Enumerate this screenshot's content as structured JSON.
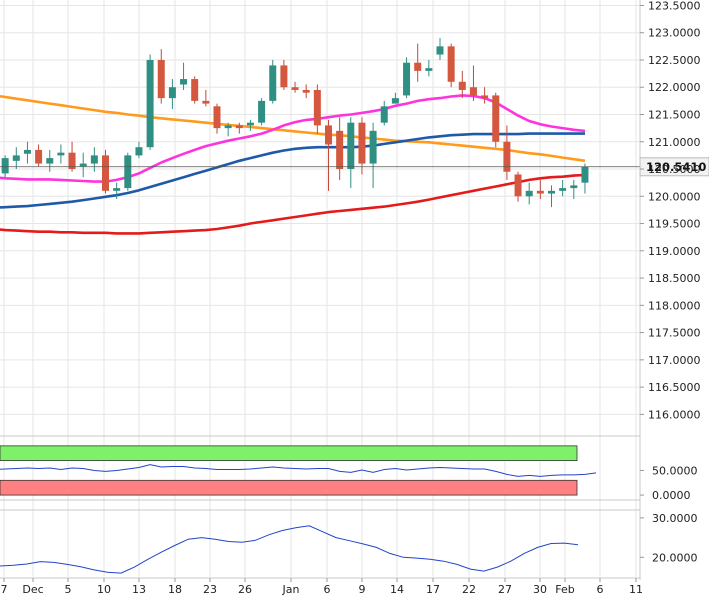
{
  "chart_data": {
    "type": "candlestick",
    "y_ticks": [
      "123.5000",
      "123.0000",
      "122.5000",
      "122.0000",
      "121.5000",
      "121.0000",
      "120.5000",
      "120.0000",
      "119.5000",
      "119.0000",
      "118.5000",
      "118.0000",
      "117.5000",
      "117.0000",
      "116.5000",
      "116.0000"
    ],
    "ylim": [
      115.75,
      123.6
    ],
    "x_labels": [
      "7",
      "Dec",
      "5",
      "10",
      "13",
      "18",
      "23",
      "26",
      "Jan",
      "6",
      "9",
      "14",
      "17",
      "22",
      "27",
      "30",
      "Feb",
      "6",
      "11"
    ],
    "last_price": "120.5410",
    "candles": [
      {
        "x": "21",
        "o": 120.2,
        "h": 120.45,
        "l": 120.15,
        "c": 120.4
      },
      {
        "x": "22",
        "o": 120.42,
        "h": 120.75,
        "l": 120.35,
        "c": 120.7
      },
      {
        "x": "23",
        "o": 120.65,
        "h": 120.9,
        "l": 120.5,
        "c": 120.75
      },
      {
        "x": "26",
        "o": 120.78,
        "h": 121.0,
        "l": 120.6,
        "c": 120.85
      },
      {
        "x": "27",
        "o": 120.85,
        "h": 120.95,
        "l": 120.55,
        "c": 120.6
      },
      {
        "x": "28",
        "o": 120.6,
        "h": 120.85,
        "l": 120.45,
        "c": 120.7
      },
      {
        "x": "Dec 3",
        "o": 120.75,
        "h": 120.95,
        "l": 120.6,
        "c": 120.8
      },
      {
        "x": "Dec 4",
        "o": 120.8,
        "h": 121.0,
        "l": 120.45,
        "c": 120.5
      },
      {
        "x": "Dec 5",
        "o": 120.55,
        "h": 120.8,
        "l": 120.35,
        "c": 120.6
      },
      {
        "x": "Dec 6",
        "o": 120.6,
        "h": 120.9,
        "l": 120.45,
        "c": 120.75
      },
      {
        "x": "Dec 9",
        "o": 120.75,
        "h": 120.85,
        "l": 120.05,
        "c": 120.1
      },
      {
        "x": "Dec 10",
        "o": 120.1,
        "h": 120.25,
        "l": 119.95,
        "c": 120.15
      },
      {
        "x": "Dec 11",
        "o": 120.15,
        "h": 120.8,
        "l": 120.1,
        "c": 120.75
      },
      {
        "x": "Dec 12",
        "o": 120.75,
        "h": 121.0,
        "l": 120.7,
        "c": 120.9
      },
      {
        "x": "Dec 13",
        "o": 120.9,
        "h": 122.6,
        "l": 120.85,
        "c": 122.5
      },
      {
        "x": "Dec 16",
        "o": 122.5,
        "h": 122.7,
        "l": 121.7,
        "c": 121.8
      },
      {
        "x": "Dec 17",
        "o": 121.8,
        "h": 122.15,
        "l": 121.6,
        "c": 122.0
      },
      {
        "x": "Dec 18",
        "o": 122.05,
        "h": 122.45,
        "l": 121.95,
        "c": 122.15
      },
      {
        "x": "Dec 19",
        "o": 122.15,
        "h": 122.2,
        "l": 121.7,
        "c": 121.75
      },
      {
        "x": "Dec 20",
        "o": 121.75,
        "h": 121.95,
        "l": 121.65,
        "c": 121.7
      },
      {
        "x": "Dec 23",
        "o": 121.65,
        "h": 121.7,
        "l": 121.15,
        "c": 121.25
      },
      {
        "x": "Dec 24",
        "o": 121.25,
        "h": 121.35,
        "l": 121.1,
        "c": 121.3
      },
      {
        "x": "Dec 25",
        "o": 121.3,
        "h": 121.35,
        "l": 121.15,
        "c": 121.25
      },
      {
        "x": "Dec 26",
        "o": 121.3,
        "h": 121.4,
        "l": 121.2,
        "c": 121.35
      },
      {
        "x": "Dec 27",
        "o": 121.35,
        "h": 121.8,
        "l": 121.3,
        "c": 121.75
      },
      {
        "x": "Dec 30",
        "o": 121.75,
        "h": 122.5,
        "l": 121.7,
        "c": 122.4
      },
      {
        "x": "Dec 31",
        "o": 122.4,
        "h": 122.5,
        "l": 121.95,
        "c": 122.0
      },
      {
        "x": "Jan 1",
        "o": 122.0,
        "h": 122.1,
        "l": 121.9,
        "c": 121.95
      },
      {
        "x": "Jan 2",
        "o": 121.95,
        "h": 122.05,
        "l": 121.8,
        "c": 121.9
      },
      {
        "x": "Jan 3",
        "o": 121.95,
        "h": 122.05,
        "l": 121.15,
        "c": 121.3
      },
      {
        "x": "Jan 6",
        "o": 121.3,
        "h": 121.4,
        "l": 120.1,
        "c": 120.95
      },
      {
        "x": "Jan 7",
        "o": 121.2,
        "h": 121.45,
        "l": 120.3,
        "c": 120.5
      },
      {
        "x": "Jan 8",
        "o": 120.5,
        "h": 121.45,
        "l": 120.15,
        "c": 121.35
      },
      {
        "x": "Jan 9",
        "o": 121.35,
        "h": 121.45,
        "l": 120.4,
        "c": 120.6
      },
      {
        "x": "Jan 10",
        "o": 120.6,
        "h": 121.35,
        "l": 120.15,
        "c": 121.2
      },
      {
        "x": "Jan 13",
        "o": 121.35,
        "h": 121.75,
        "l": 121.3,
        "c": 121.65
      },
      {
        "x": "Jan 14",
        "o": 121.7,
        "h": 121.9,
        "l": 121.7,
        "c": 121.8
      },
      {
        "x": "Jan 15",
        "o": 121.85,
        "h": 122.55,
        "l": 121.8,
        "c": 122.45
      },
      {
        "x": "Jan 16",
        "o": 122.45,
        "h": 122.8,
        "l": 122.1,
        "c": 122.3
      },
      {
        "x": "Jan 17",
        "o": 122.3,
        "h": 122.5,
        "l": 122.2,
        "c": 122.35
      },
      {
        "x": "Jan 20",
        "o": 122.6,
        "h": 122.9,
        "l": 122.5,
        "c": 122.75
      },
      {
        "x": "Jan 21",
        "o": 122.75,
        "h": 122.8,
        "l": 122.0,
        "c": 122.1
      },
      {
        "x": "Jan 22",
        "o": 122.1,
        "h": 122.3,
        "l": 121.8,
        "c": 121.95
      },
      {
        "x": "Jan 23",
        "o": 122.0,
        "h": 122.4,
        "l": 121.75,
        "c": 121.85
      },
      {
        "x": "Jan 24",
        "o": 121.85,
        "h": 122.0,
        "l": 121.7,
        "c": 121.8
      },
      {
        "x": "Jan 27",
        "o": 121.85,
        "h": 121.9,
        "l": 120.9,
        "c": 121.0
      },
      {
        "x": "Jan 28",
        "o": 121.0,
        "h": 121.3,
        "l": 120.3,
        "c": 120.45
      },
      {
        "x": "Jan 29",
        "o": 120.4,
        "h": 120.45,
        "l": 119.9,
        "c": 120.0
      },
      {
        "x": "Jan 30",
        "o": 120.0,
        "h": 120.25,
        "l": 119.85,
        "c": 120.1
      },
      {
        "x": "Jan 31",
        "o": 120.1,
        "h": 120.3,
        "l": 119.95,
        "c": 120.05
      },
      {
        "x": "Feb 3",
        "o": 120.05,
        "h": 120.2,
        "l": 119.8,
        "c": 120.1
      },
      {
        "x": "Feb 4",
        "o": 120.1,
        "h": 120.3,
        "l": 120.0,
        "c": 120.15
      },
      {
        "x": "Feb 5",
        "o": 120.15,
        "h": 120.3,
        "l": 119.95,
        "c": 120.2
      },
      {
        "x": "Feb 6",
        "o": 120.25,
        "h": 120.6,
        "l": 120.05,
        "c": 120.54
      }
    ],
    "ma_lines": [
      {
        "color": "#ff9a1a",
        "values": [
          121.85,
          121.82,
          121.79,
          121.76,
          121.73,
          121.7,
          121.67,
          121.64,
          121.61,
          121.58,
          121.55,
          121.53,
          121.5,
          121.48,
          121.45,
          121.43,
          121.41,
          121.39,
          121.37,
          121.35,
          121.33,
          121.31,
          121.29,
          121.27,
          121.25,
          121.23,
          121.21,
          121.19,
          121.17,
          121.15,
          121.13,
          121.12,
          121.1,
          121.08,
          121.06,
          121.04,
          121.02,
          121.01,
          121.0,
          120.99,
          120.97,
          120.95,
          120.93,
          120.91,
          120.89,
          120.87,
          120.85,
          120.82,
          120.79,
          120.77,
          120.74,
          120.71,
          120.68,
          120.65
        ]
      },
      {
        "color": "#ff33dd",
        "values": [
          120.35,
          120.33,
          120.32,
          120.31,
          120.31,
          120.31,
          120.3,
          120.29,
          120.28,
          120.27,
          120.27,
          120.3,
          120.35,
          120.42,
          120.52,
          120.62,
          120.7,
          120.78,
          120.85,
          120.92,
          120.97,
          121.02,
          121.06,
          121.1,
          121.15,
          121.22,
          121.3,
          121.36,
          121.4,
          121.42,
          121.45,
          121.48,
          121.5,
          121.53,
          121.56,
          121.6,
          121.66,
          121.7,
          121.75,
          121.78,
          121.8,
          121.83,
          121.85,
          121.84,
          121.8,
          121.72,
          121.6,
          121.48,
          121.38,
          121.32,
          121.28,
          121.25,
          121.22,
          121.2
        ]
      },
      {
        "color": "#1e5aa8",
        "values": [
          119.79,
          119.8,
          119.81,
          119.82,
          119.84,
          119.86,
          119.88,
          119.9,
          119.93,
          119.96,
          119.99,
          120.02,
          120.06,
          120.11,
          120.17,
          120.23,
          120.29,
          120.35,
          120.41,
          120.47,
          120.53,
          120.59,
          120.65,
          120.7,
          120.75,
          120.8,
          120.84,
          120.87,
          120.89,
          120.9,
          120.9,
          120.9,
          120.9,
          120.91,
          120.93,
          120.96,
          120.99,
          121.02,
          121.05,
          121.08,
          121.1,
          121.12,
          121.13,
          121.14,
          121.14,
          121.14,
          121.14,
          121.14,
          121.15,
          121.15,
          121.15,
          121.15,
          121.15,
          121.15
        ]
      },
      {
        "color": "#e31b1b",
        "values": [
          119.4,
          119.38,
          119.37,
          119.36,
          119.35,
          119.35,
          119.34,
          119.34,
          119.33,
          119.33,
          119.33,
          119.32,
          119.32,
          119.32,
          119.33,
          119.34,
          119.35,
          119.36,
          119.37,
          119.38,
          119.4,
          119.43,
          119.46,
          119.5,
          119.53,
          119.56,
          119.59,
          119.62,
          119.65,
          119.68,
          119.71,
          119.73,
          119.75,
          119.77,
          119.79,
          119.81,
          119.84,
          119.87,
          119.9,
          119.94,
          119.98,
          120.02,
          120.06,
          120.1,
          120.14,
          120.18,
          120.22,
          120.26,
          120.3,
          120.33,
          120.35,
          120.36,
          120.38,
          120.39
        ]
      }
    ],
    "osc1_ticks": [
      "50.0000",
      "0.0000"
    ],
    "osc1_ylim": [
      -10,
      120
    ],
    "osc1_zones": [
      {
        "from": 70,
        "to": 100,
        "color": "#7ef06a"
      },
      {
        "from": 0,
        "to": 30,
        "color": "#ff8080"
      }
    ],
    "osc1_values": [
      52,
      53,
      54,
      55,
      54,
      55,
      52,
      55,
      54,
      50,
      48,
      50,
      53,
      56,
      62,
      57,
      58,
      58,
      55,
      54,
      52,
      52,
      52,
      53,
      55,
      57,
      55,
      54,
      53,
      54,
      54,
      48,
      46,
      51,
      46,
      52,
      54,
      51,
      53,
      55,
      56,
      55,
      54,
      53,
      53,
      48,
      42,
      38,
      40,
      38,
      40,
      41,
      41,
      42,
      45
    ],
    "osc2_ticks": [
      "30.0000",
      "20.0000"
    ],
    "osc2_ylim": [
      15,
      32
    ],
    "osc2_values": [
      17.8,
      18.0,
      18.3,
      18.9,
      18.7,
      18.2,
      17.6,
      16.8,
      16.2,
      16.0,
      17.5,
      19.5,
      21.3,
      23.0,
      24.6,
      25.0,
      24.6,
      24.0,
      23.8,
      24.3,
      25.7,
      26.8,
      27.5,
      28.0,
      26.5,
      25.0,
      24.2,
      23.4,
      22.5,
      21.0,
      20.0,
      19.8,
      19.5,
      19.0,
      18.2,
      17.0,
      16.5,
      17.5,
      19.0,
      21.0,
      22.5,
      23.5,
      23.6,
      23.2
    ]
  }
}
